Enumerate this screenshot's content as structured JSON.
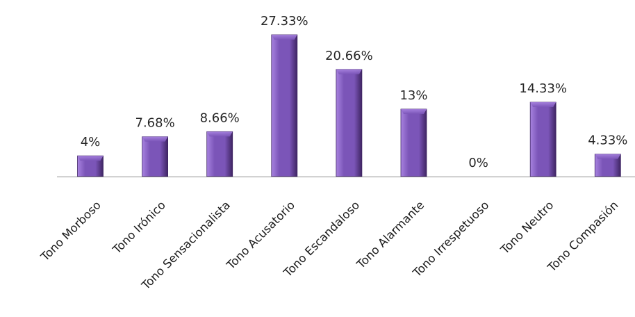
{
  "chart_data": {
    "type": "bar",
    "title": "",
    "xlabel": "",
    "ylabel": "",
    "categories": [
      "Tono Morboso",
      "Tono Irónico",
      "Tono Sensacionalista",
      "Tono Acusatorio",
      "Tono Escandaloso",
      "Tono Alarmante",
      "Tono Irrespetuoso",
      "Tono Neutro",
      "Tono Compasión"
    ],
    "values": [
      4,
      7.68,
      8.66,
      27.33,
      20.66,
      13,
      0,
      14.33,
      4.33
    ],
    "data_labels": [
      "4%",
      "7.68%",
      "8.66%",
      "27.33%",
      "20.66%",
      "13%",
      "0%",
      "14.33%",
      "4.33%"
    ],
    "ylim": [
      0,
      27.33
    ],
    "grid": false,
    "legend": "none",
    "colors": {
      "bar_fill": "#7b55b8",
      "bar_dark": "#3f2563",
      "bar_light": "#a883e0",
      "axis": "#8c8c8c",
      "text": "#262626"
    }
  }
}
